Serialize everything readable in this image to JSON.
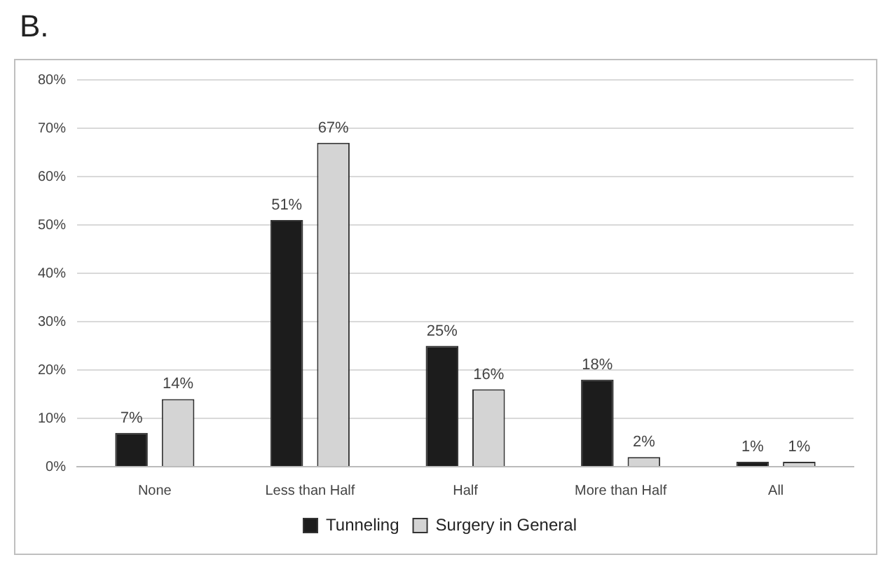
{
  "chart_data": {
    "type": "bar",
    "title": "B.",
    "categories": [
      "None",
      "Less than Half",
      "Half",
      "More than Half",
      "All"
    ],
    "series": [
      {
        "name": "Tunneling",
        "color": "#1c1c1c",
        "values": [
          7,
          51,
          25,
          18,
          1
        ],
        "value_labels": [
          "7%",
          "51%",
          "25%",
          "18%",
          "1%"
        ]
      },
      {
        "name": "Surgery in General",
        "color": "#d4d4d4",
        "values": [
          14,
          67,
          16,
          2,
          1
        ],
        "value_labels": [
          "14%",
          "67%",
          "16%",
          "2%",
          "1%"
        ]
      }
    ],
    "ylim": [
      0,
      80
    ],
    "yticks": [
      {
        "value": 0,
        "label": "0%"
      },
      {
        "value": 10,
        "label": "10%"
      },
      {
        "value": 20,
        "label": "20%"
      },
      {
        "value": 30,
        "label": "30%"
      },
      {
        "value": 40,
        "label": "40%"
      },
      {
        "value": 50,
        "label": "50%"
      },
      {
        "value": 60,
        "label": "60%"
      },
      {
        "value": 70,
        "label": "70%"
      },
      {
        "value": 80,
        "label": "80%"
      }
    ],
    "grid": "y",
    "legend": "bottom"
  }
}
